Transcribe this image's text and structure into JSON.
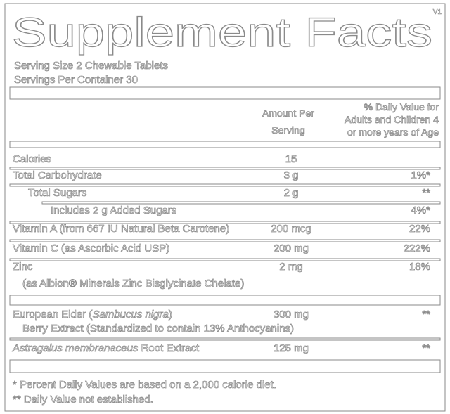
{
  "version": "V1",
  "title": "Supplement Facts",
  "serving_size": "Serving Size 2 Chewable Tablets",
  "servings_per_container": "Servings Per Container 30",
  "header": {
    "amount": [
      "Amount Per",
      "Serving"
    ],
    "daily_value": [
      "% Daily Value for",
      "Adults and Children 4",
      "or more years of Age"
    ]
  },
  "rows": [
    {
      "name": [
        {
          "text": "Calories"
        }
      ],
      "amount": "15"
    },
    {
      "name": [
        {
          "text": "Total Carbohydrate"
        }
      ],
      "amount": "3 g",
      "daily_value": "1%*"
    },
    {
      "name": [
        {
          "text": "Total Sugars"
        }
      ],
      "amount": "2 g",
      "daily_value": "**"
    },
    {
      "name": [
        {
          "text": "Includes 2 g Added Sugars"
        }
      ],
      "daily_value": "4%*"
    },
    {
      "name": [
        {
          "text": "Vitamin A (from 667 IU Natural Beta Carotene)"
        }
      ],
      "amount": "200 mcg",
      "daily_value": "22%"
    },
    {
      "name": [
        {
          "text": "Vitamin C (as Ascorbic Acid USP)"
        }
      ],
      "amount": "200 mg",
      "daily_value": "222%"
    },
    {
      "name": [
        {
          "text": "Zinc"
        }
      ],
      "sub": "(as Albion® Minerals Zinc Bisglycinate Chelate)",
      "amount": "2 mg",
      "daily_value": "18%"
    },
    {
      "name": [
        {
          "text": "European Elder ("
        },
        {
          "text": "Sambucus nigra",
          "italic": true
        },
        {
          "text": ")"
        }
      ],
      "sub": "Berry Extract (Standardized to contain 13% Anthocyanins)",
      "amount": "300 mg",
      "daily_value": "**"
    },
    {
      "name": [
        {
          "text": "Astragalus membranaceus",
          "italic": true
        },
        {
          "text": " Root Extract"
        }
      ],
      "amount": "125 mg",
      "daily_value": "**"
    }
  ],
  "footnotes": [
    "* Percent Daily Values are based on a 2,000 calorie diet.",
    "** Daily Value not established."
  ]
}
